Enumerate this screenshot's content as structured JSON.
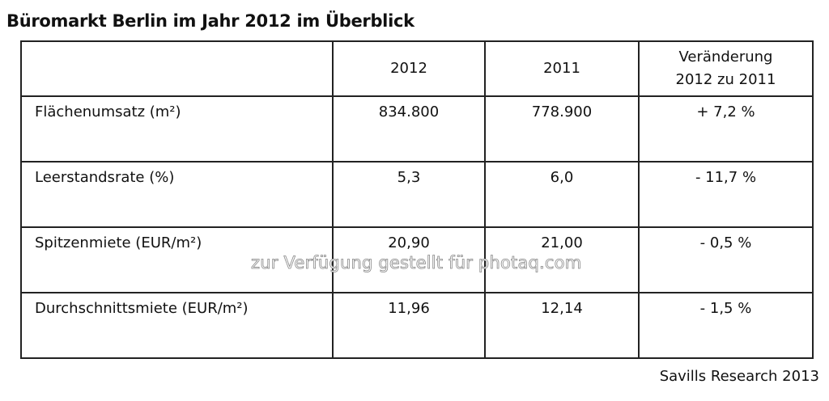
{
  "title": "Büromarkt Berlin im Jahr 2012 im Überblick",
  "table": {
    "header": [
      "",
      "2012",
      "2011",
      [
        "Veränderung",
        "2012 zu 2011"
      ]
    ],
    "rows": [
      [
        "Flächenumsatz (m²)",
        "834.800",
        "778.900",
        "+ 7,2 %"
      ],
      [
        "Leerstandsrate (%)",
        "5,3",
        "6,0",
        "- 11,7 %"
      ],
      [
        "Spitzenmiete (EUR/m²)",
        "20,90",
        "21,00",
        "- 0,5 %"
      ],
      [
        "Durchschnittsmiete (EUR/m²)",
        "11,96",
        "12,14",
        "- 1,5 %"
      ]
    ]
  },
  "watermark": "zur Verfügung gestellt für photaq.com",
  "source": "Savills Research 2013"
}
